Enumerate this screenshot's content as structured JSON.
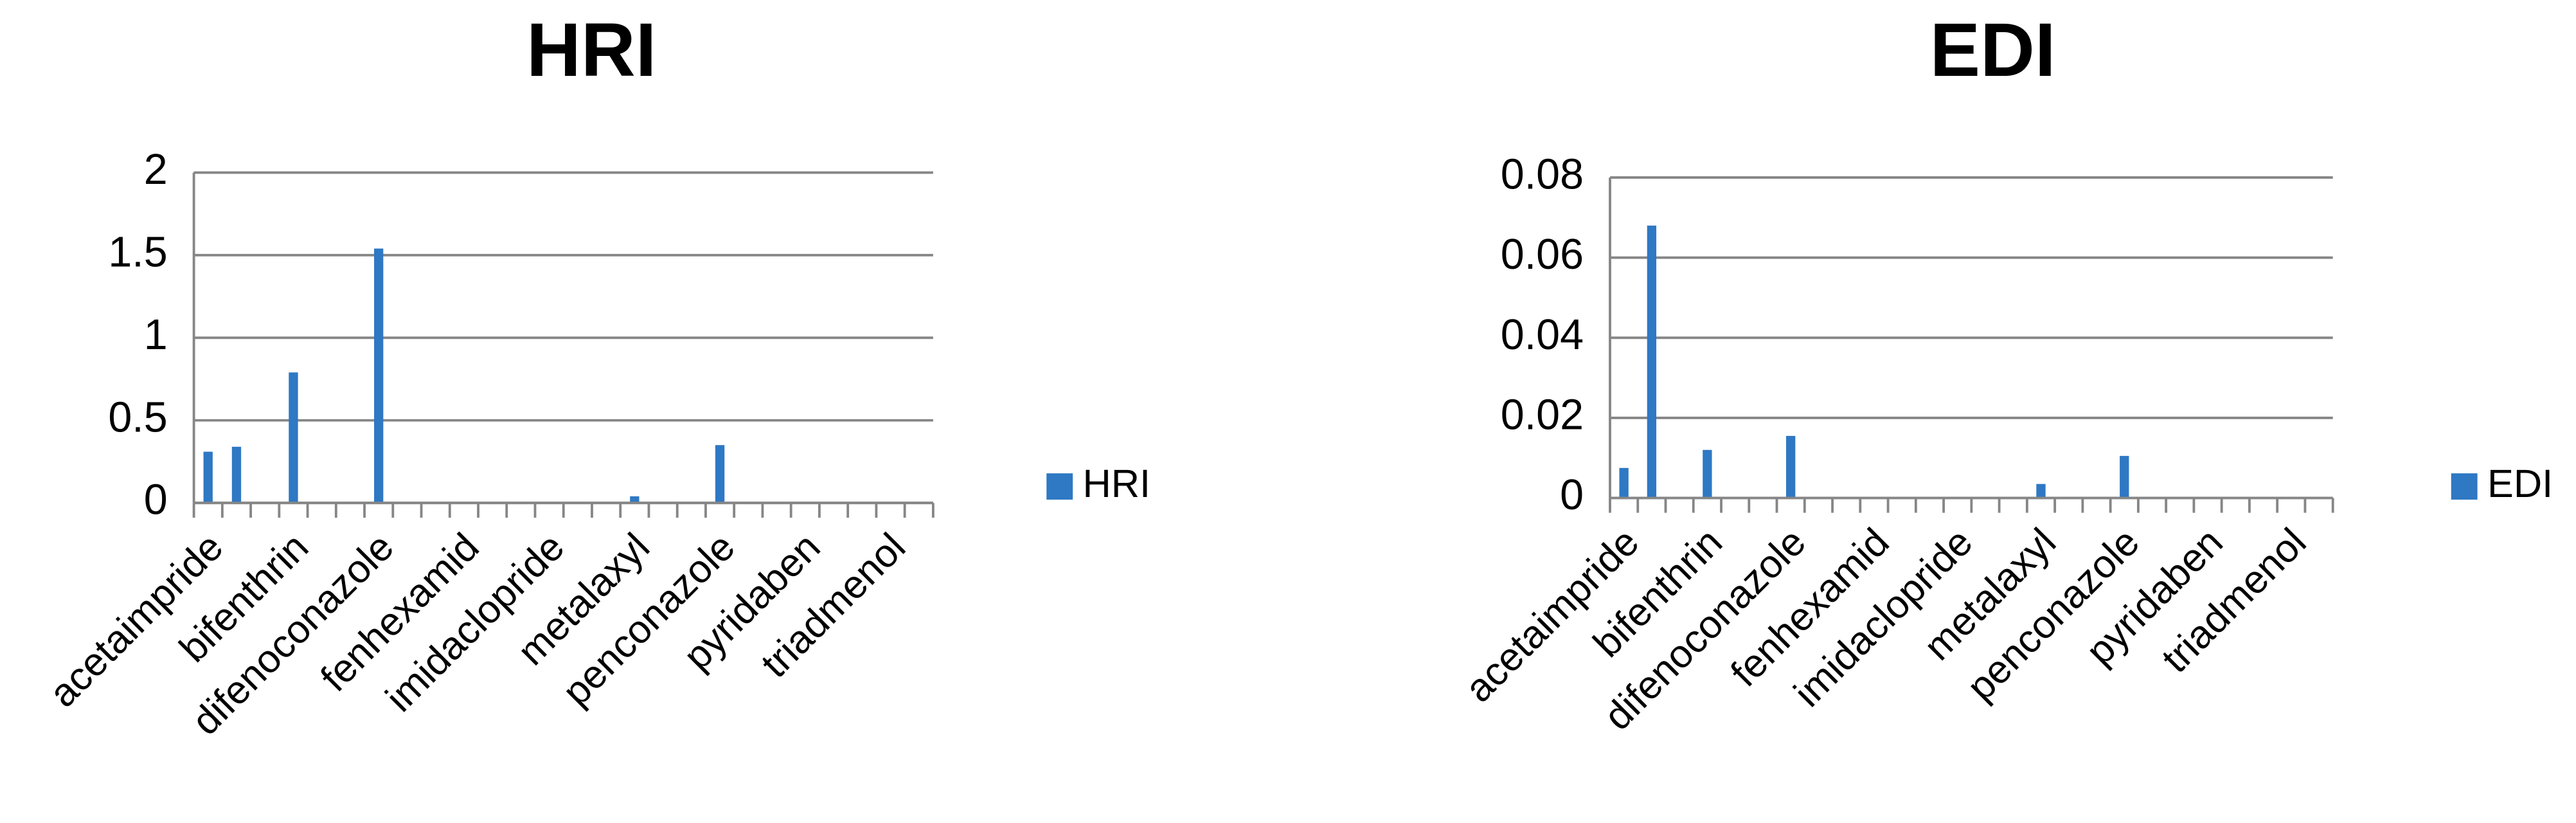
{
  "chart_data": [
    {
      "type": "bar",
      "title": "HRI",
      "categories": [
        "acetaimpride",
        null,
        null,
        "bifenthrin",
        null,
        null,
        "difenoconazole",
        null,
        null,
        "fenhexamid",
        null,
        null,
        "imidaclopride",
        null,
        null,
        "metalaxyl",
        null,
        null,
        "penconazole",
        null,
        null,
        "pyridaben",
        null,
        null,
        "triadmenol",
        null
      ],
      "series": [
        {
          "name": "HRI",
          "color": "#2e78c4",
          "values": [
            0.31,
            0.34,
            0,
            0.79,
            0,
            0,
            1.54,
            0,
            0,
            0,
            0,
            0,
            0,
            0,
            0,
            0.04,
            0,
            0,
            0.35,
            0,
            0,
            0,
            0,
            0,
            0,
            0
          ]
        }
      ],
      "ylim": [
        0,
        2
      ],
      "yticks": [
        0,
        0.5,
        1,
        1.5,
        2
      ],
      "grid": true,
      "legend": "right"
    },
    {
      "type": "bar",
      "title": "EDI",
      "categories": [
        "acetaimpride",
        null,
        null,
        "bifenthrin",
        null,
        null,
        "difenoconazole",
        null,
        null,
        "fenhexamid",
        null,
        null,
        "imidaclopride",
        null,
        null,
        "metalaxyl",
        null,
        null,
        "penconazole",
        null,
        null,
        "pyridaben",
        null,
        null,
        "triadmenol",
        null
      ],
      "series": [
        {
          "name": "EDI",
          "color": "#2e78c4",
          "values": [
            0.0075,
            0.068,
            0,
            0.012,
            0,
            0,
            0.0155,
            0,
            0,
            0,
            0,
            0,
            0,
            0,
            0,
            0.0035,
            0,
            0,
            0.0105,
            0,
            0,
            0,
            0,
            0,
            0,
            0
          ]
        }
      ],
      "ylim": [
        0,
        0.08
      ],
      "yticks": [
        0,
        0.02,
        0.04,
        0.06,
        0.08
      ],
      "grid": true,
      "legend": "right"
    }
  ]
}
